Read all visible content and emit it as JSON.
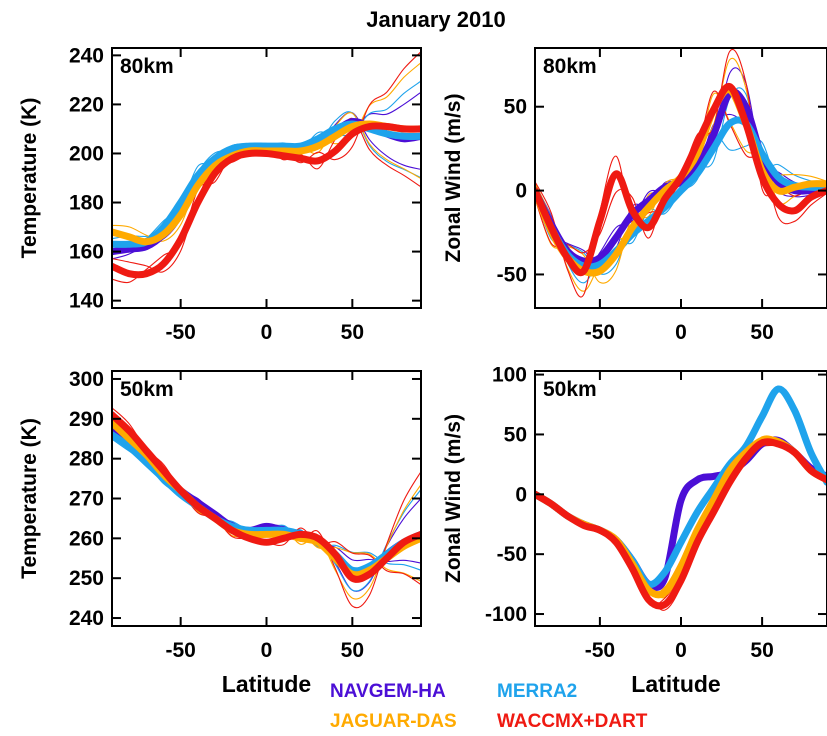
{
  "title": "January 2010",
  "legend": [
    {
      "name": "NAVGEM-HA",
      "color": "#4b0fd6"
    },
    {
      "name": "MERRA2",
      "color": "#1fa3ec"
    },
    {
      "name": "JAGUAR-DAS",
      "color": "#ffaa00"
    },
    {
      "name": "WACCMX+DART",
      "color": "#ef1a12"
    }
  ],
  "chart_data": [
    {
      "type": "line",
      "label": "80km",
      "xlabel": "",
      "ylabel": "Temperature (K)",
      "xlim": [
        -90,
        90
      ],
      "ylim": [
        137,
        243
      ],
      "xticks": [
        -50,
        0,
        50
      ],
      "yticks": [
        140,
        160,
        180,
        200,
        220,
        240
      ],
      "x": [
        -90,
        -80,
        -70,
        -60,
        -50,
        -40,
        -30,
        -20,
        -10,
        0,
        10,
        20,
        30,
        40,
        50,
        60,
        70,
        80,
        90
      ],
      "series": [
        {
          "name": "NAVGEM-HA",
          "color": "#4b0fd6",
          "values": [
            160,
            161,
            162,
            167,
            176,
            188,
            196,
            200,
            201,
            201,
            201,
            202,
            204,
            209,
            213,
            211,
            208,
            206,
            207
          ]
        },
        {
          "name": "MERRA2",
          "color": "#1fa3ec",
          "values": [
            163,
            163,
            164,
            170,
            180,
            191,
            198,
            202,
            203,
            203,
            203,
            203,
            206,
            210,
            212,
            210,
            208,
            207,
            207
          ]
        },
        {
          "name": "JAGUAR-DAS",
          "color": "#ffaa00",
          "values": [
            168,
            166,
            164,
            167,
            175,
            187,
            195,
            199,
            201,
            201,
            201,
            201,
            203,
            207,
            211,
            212,
            211,
            210,
            210
          ]
        },
        {
          "name": "WACCMX+DART",
          "color": "#ef1a12",
          "values": [
            154,
            151,
            151,
            155,
            165,
            180,
            192,
            198,
            200,
            200,
            199,
            198,
            197,
            201,
            208,
            211,
            211,
            210,
            210
          ]
        }
      ]
    },
    {
      "type": "line",
      "label": "80km",
      "xlabel": "",
      "ylabel": "Zonal Wind (m/s)",
      "xlim": [
        -90,
        90
      ],
      "ylim": [
        -70,
        85
      ],
      "xticks": [
        -50,
        0,
        50
      ],
      "yticks": [
        -50,
        0,
        50
      ],
      "x": [
        -90,
        -80,
        -70,
        -60,
        -50,
        -40,
        -30,
        -20,
        -10,
        0,
        10,
        20,
        30,
        40,
        50,
        60,
        70,
        80,
        90
      ],
      "series": [
        {
          "name": "NAVGEM-HA",
          "color": "#4b0fd6",
          "values": [
            0,
            -20,
            -36,
            -42,
            -40,
            -28,
            -14,
            -6,
            2,
            5,
            15,
            33,
            58,
            50,
            20,
            5,
            0,
            0,
            0
          ]
        },
        {
          "name": "MERRA2",
          "color": "#1fa3ec",
          "values": [
            0,
            -22,
            -38,
            -45,
            -44,
            -36,
            -26,
            -18,
            -10,
            0,
            10,
            25,
            40,
            40,
            22,
            8,
            3,
            2,
            2
          ]
        },
        {
          "name": "JAGUAR-DAS",
          "color": "#ffaa00",
          "values": [
            0,
            -24,
            -40,
            -48,
            -48,
            -38,
            -22,
            -10,
            0,
            8,
            22,
            48,
            60,
            40,
            12,
            0,
            2,
            4,
            4
          ]
        },
        {
          "name": "WACCMX+DART",
          "color": "#ef1a12",
          "values": [
            0,
            -22,
            -40,
            -48,
            -18,
            10,
            -12,
            -22,
            -5,
            8,
            28,
            48,
            62,
            40,
            8,
            -8,
            -12,
            -4,
            0
          ]
        }
      ]
    },
    {
      "type": "line",
      "label": "50km",
      "xlabel": "Latitude",
      "ylabel": "Temperature (K)",
      "xlim": [
        -90,
        90
      ],
      "ylim": [
        238,
        302
      ],
      "xticks": [
        -50,
        0,
        50
      ],
      "yticks": [
        240,
        250,
        260,
        270,
        280,
        290,
        300
      ],
      "x": [
        -90,
        -80,
        -70,
        -60,
        -50,
        -40,
        -30,
        -20,
        -10,
        0,
        10,
        20,
        30,
        40,
        50,
        60,
        70,
        80,
        90
      ],
      "series": [
        {
          "name": "NAVGEM-HA",
          "color": "#4b0fd6",
          "values": [
            287,
            284,
            280,
            276,
            272,
            269,
            266,
            263,
            262,
            263,
            262,
            261,
            259,
            256,
            251,
            252,
            256,
            259,
            261
          ]
        },
        {
          "name": "MERRA2",
          "color": "#1fa3ec",
          "values": [
            286,
            283,
            279,
            275,
            271,
            268,
            265,
            263,
            262,
            262,
            262,
            261,
            259,
            256,
            252,
            253,
            256,
            259,
            261
          ]
        },
        {
          "name": "JAGUAR-DAS",
          "color": "#ffaa00",
          "values": [
            289,
            285,
            281,
            276,
            272,
            268,
            265,
            262,
            261,
            261,
            261,
            260,
            259,
            255,
            251,
            252,
            255,
            258,
            260
          ]
        },
        {
          "name": "WACCMX+DART",
          "color": "#ef1a12",
          "values": [
            291,
            287,
            282,
            277,
            272,
            268,
            265,
            262,
            260,
            259,
            260,
            261,
            260,
            256,
            250,
            251,
            255,
            259,
            261
          ]
        }
      ]
    },
    {
      "type": "line",
      "label": "50km",
      "xlabel": "Latitude",
      "ylabel": "Zonal Wind (m/s)",
      "xlim": [
        -90,
        90
      ],
      "ylim": [
        -110,
        103
      ],
      "xticks": [
        -50,
        0,
        50
      ],
      "yticks": [
        -100,
        -50,
        0,
        50,
        100
      ],
      "x": [
        -90,
        -80,
        -70,
        -60,
        -50,
        -40,
        -30,
        -20,
        -10,
        0,
        10,
        20,
        30,
        40,
        50,
        60,
        70,
        80,
        90
      ],
      "series": [
        {
          "name": "NAVGEM-HA",
          "color": "#4b0fd6",
          "values": [
            0,
            -8,
            -18,
            -25,
            -30,
            -38,
            -55,
            -75,
            -70,
            -5,
            12,
            15,
            18,
            28,
            42,
            45,
            35,
            22,
            15
          ]
        },
        {
          "name": "MERRA2",
          "color": "#1fa3ec",
          "values": [
            0,
            -8,
            -18,
            -25,
            -30,
            -38,
            -55,
            -75,
            -65,
            -40,
            -15,
            5,
            25,
            40,
            65,
            88,
            70,
            35,
            10
          ]
        },
        {
          "name": "JAGUAR-DAS",
          "color": "#ffaa00",
          "values": [
            0,
            -8,
            -18,
            -25,
            -30,
            -38,
            -58,
            -80,
            -82,
            -60,
            -30,
            -5,
            20,
            35,
            45,
            44,
            35,
            20,
            12
          ]
        },
        {
          "name": "WACCMX+DART",
          "color": "#ef1a12",
          "values": [
            0,
            -8,
            -18,
            -26,
            -30,
            -40,
            -62,
            -88,
            -92,
            -72,
            -40,
            -15,
            10,
            30,
            43,
            42,
            35,
            20,
            12
          ]
        }
      ]
    }
  ]
}
